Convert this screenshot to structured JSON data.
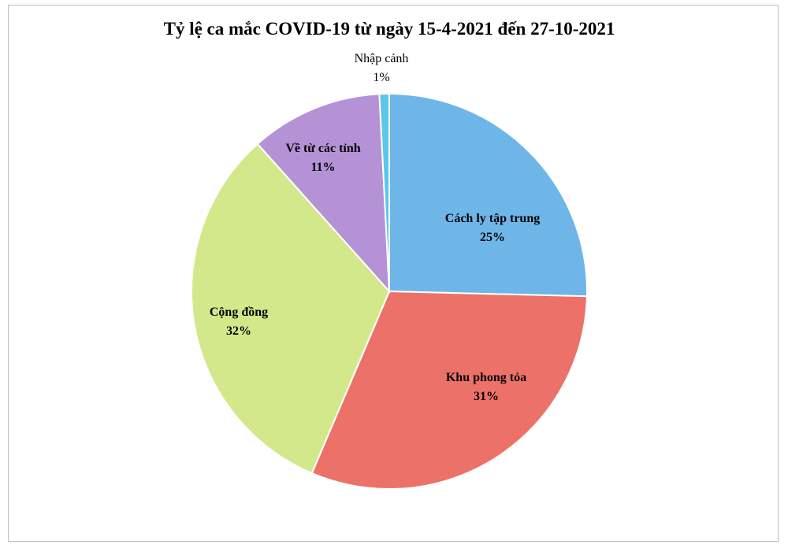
{
  "chart_data": {
    "type": "pie",
    "title": "Tỷ lệ ca mắc COVID-19 từ ngày 15-4-2021 đến 27-10-2021",
    "slices": [
      {
        "label": "Cách ly tập trung",
        "value_text": "25%",
        "value": 25.4,
        "color": "#6fb6e8",
        "bold": true
      },
      {
        "label": "Khu phong tỏa",
        "value_text": "31%",
        "value": 31.0,
        "color": "#ec7169",
        "bold": true
      },
      {
        "label": "Cộng đồng",
        "value_text": "32%",
        "value": 32.0,
        "color": "#d3e88a",
        "bold": true
      },
      {
        "label": "Về từ các tỉnh",
        "value_text": "11%",
        "value": 10.8,
        "color": "#b592d6",
        "bold": true
      },
      {
        "label": "Nhập cảnh",
        "value_text": "1%",
        "value": 0.8,
        "color": "#5bc6ec",
        "bold": false
      }
    ]
  }
}
